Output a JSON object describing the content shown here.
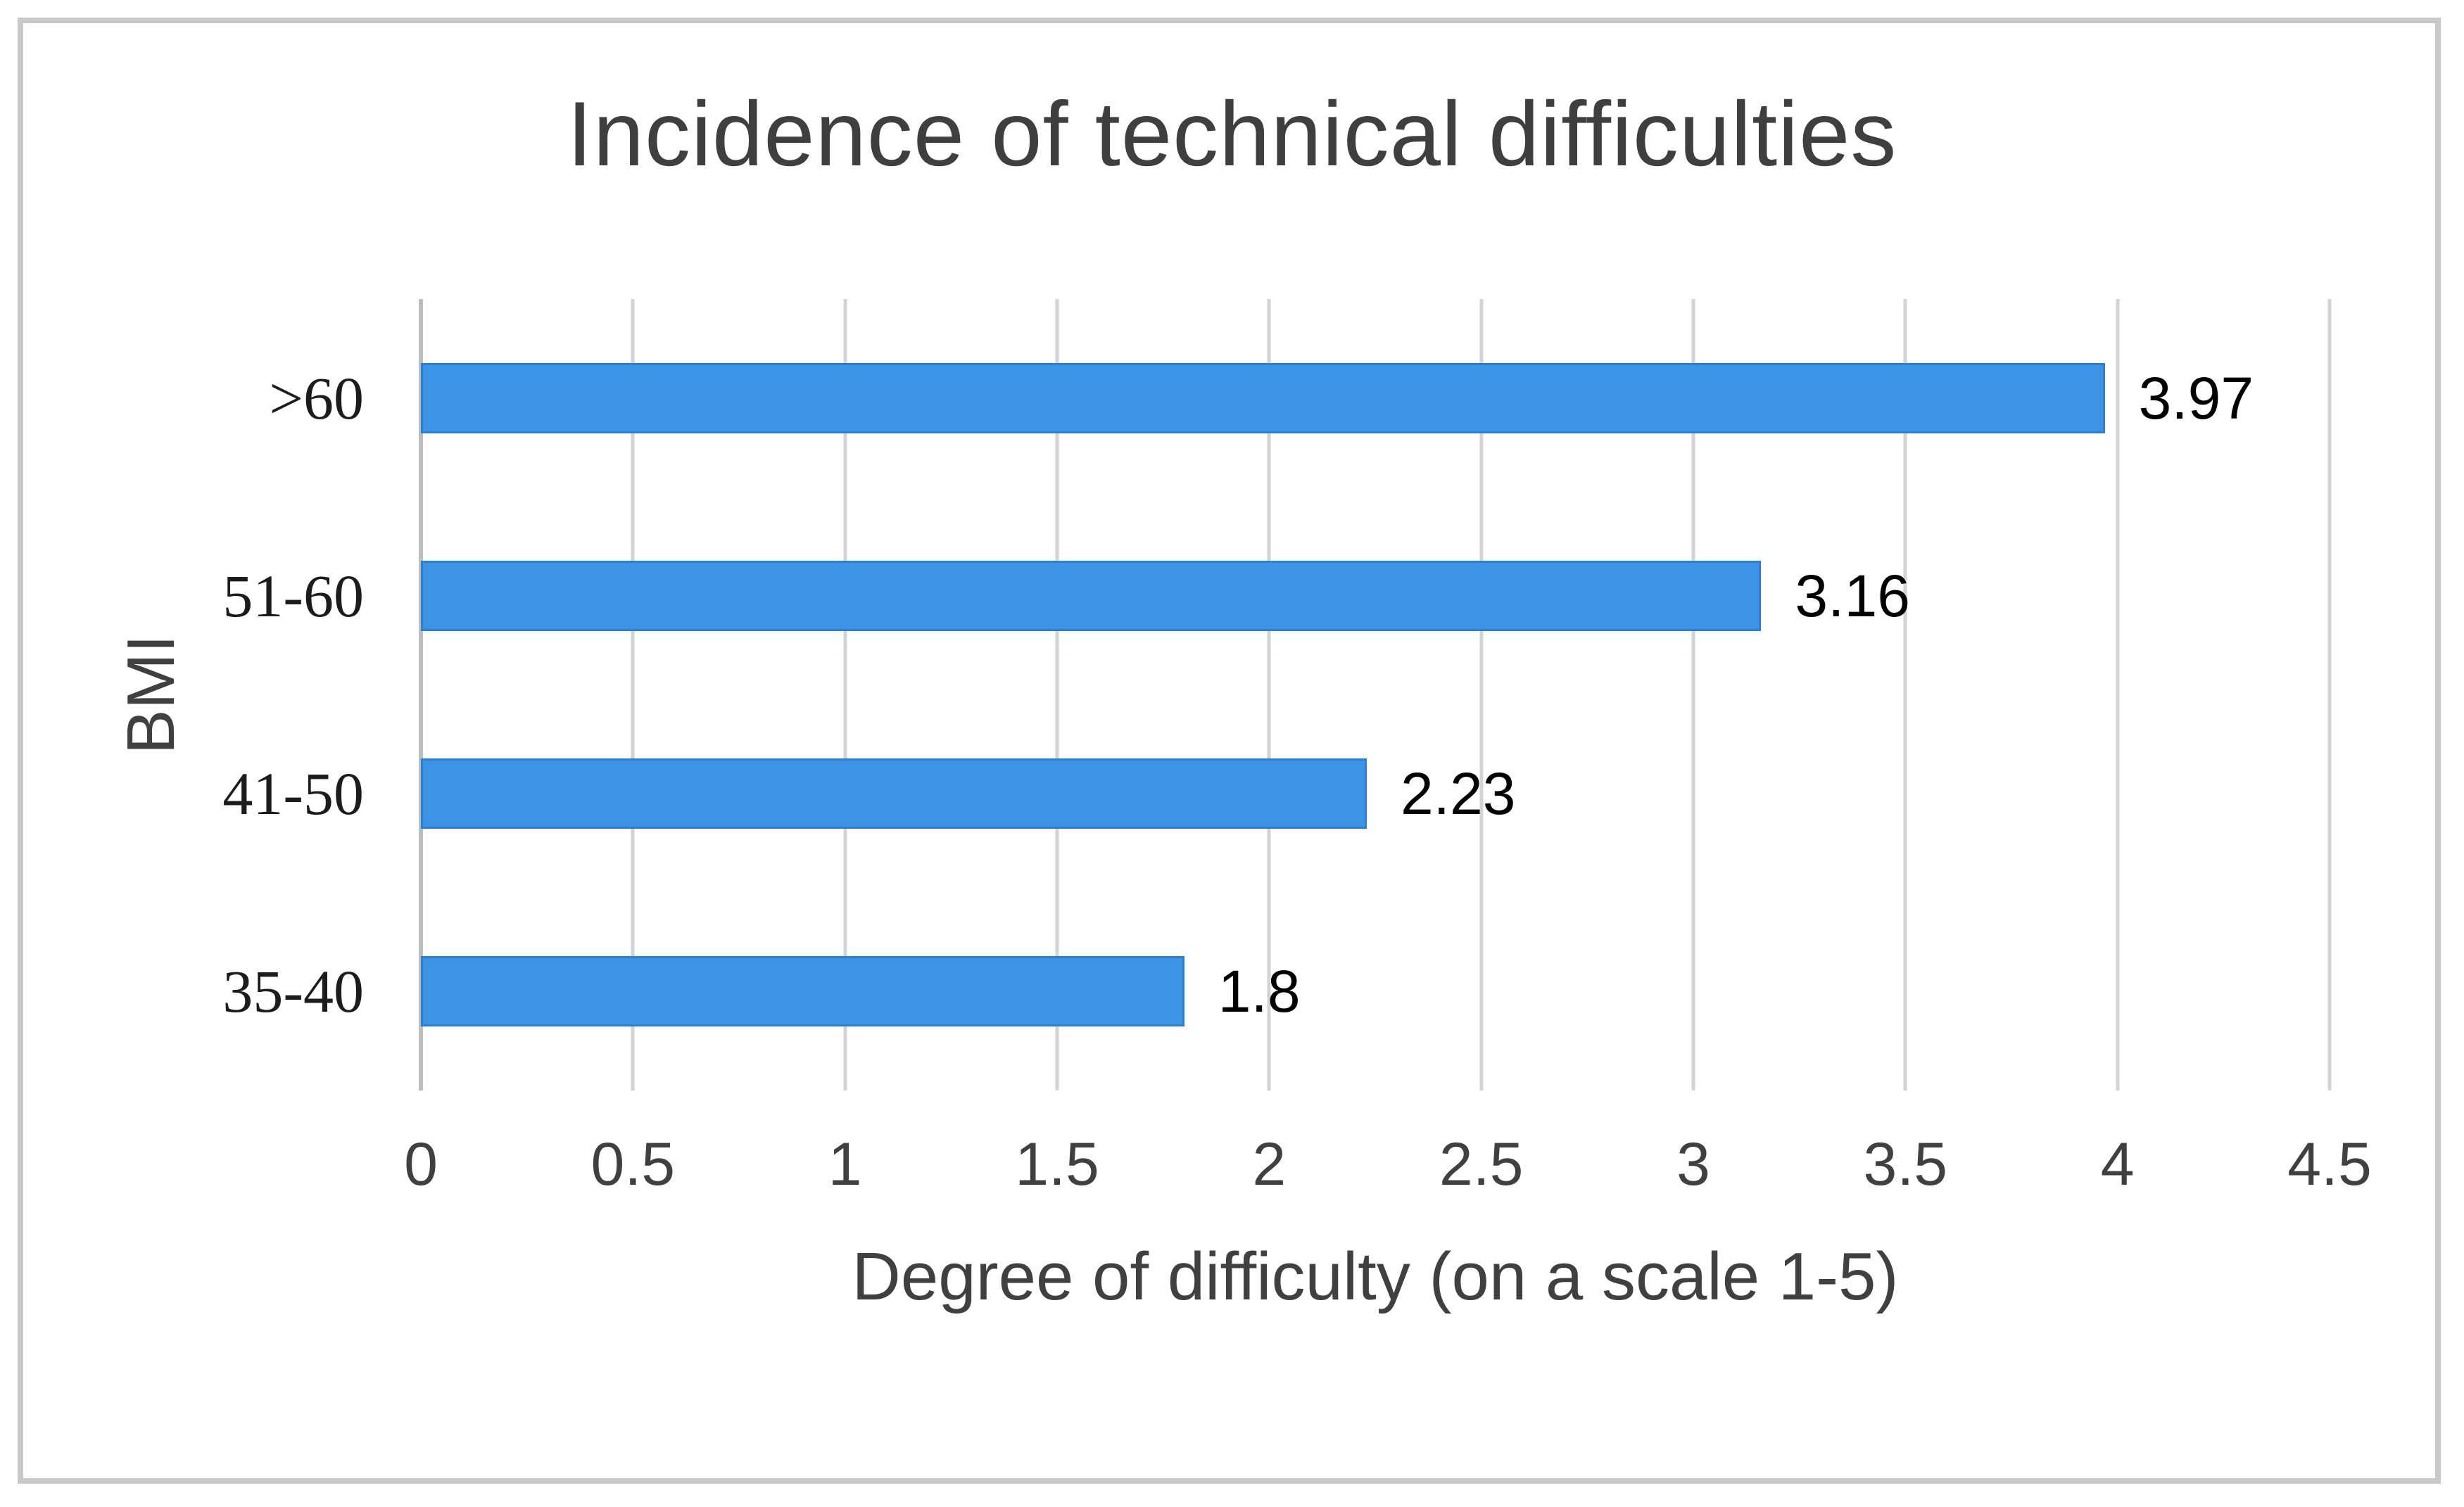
{
  "chart_data": {
    "type": "bar",
    "orientation": "horizontal",
    "title": "Incidence of technical difficulties",
    "xlabel": "Degree of difficulty (on a scale 1-5)",
    "ylabel": "BMI",
    "categories": [
      ">60",
      "51-60",
      "41-50",
      "35-40"
    ],
    "values": [
      3.97,
      3.16,
      2.23,
      1.8
    ],
    "data_labels": [
      "3.97",
      "3.16",
      "2.23",
      "1.8"
    ],
    "xlim": [
      0,
      4.5
    ],
    "xticks": [
      0,
      0.5,
      1,
      1.5,
      2,
      2.5,
      3,
      3.5,
      4,
      4.5
    ],
    "xtick_labels": [
      "0",
      "0.5",
      "1",
      "1.5",
      "2",
      "2.5",
      "3",
      "3.5",
      "4",
      "4.5"
    ],
    "grid": "vertical-major",
    "legend": "none",
    "colors": {
      "background": "#FFFFFF",
      "bar_fill": "#3D94E6",
      "bar_border": "#2E7FD2",
      "gridline": "#D3D3D3",
      "axis_line": "#BDBDBD",
      "title_text": "#3F3F3F",
      "axis_text": "#404040",
      "data_label_text": "#000000",
      "figure_border": "#C9C9C9"
    }
  }
}
